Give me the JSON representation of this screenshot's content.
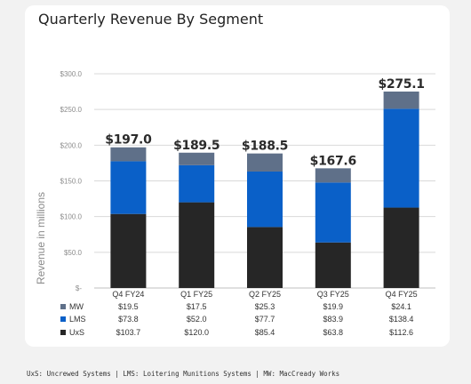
{
  "title": "Quarterly Revenue By Segment",
  "footnote": "UxS: Uncrewed Systems | LMS: Loitering Munitions Systems | MW: MacCready Works",
  "chart_data": {
    "type": "bar",
    "stacked": true,
    "title": "Quarterly Revenue By Segment",
    "ylabel": "Revenue in millions",
    "xlabel": "",
    "ylim": [
      0,
      300
    ],
    "yticks": [
      "$-",
      "$50.0",
      "$100.0",
      "$150.0",
      "$200.0",
      "$250.0",
      "$300.0"
    ],
    "yticks_values": [
      0,
      50,
      100,
      150,
      200,
      250,
      300
    ],
    "grid": true,
    "categories": [
      "Q4 FY24",
      "Q1 FY25",
      "Q2 FY25",
      "Q3 FY25",
      "Q4 FY25"
    ],
    "series": [
      {
        "name": "UxS",
        "values": [
          103.7,
          120.0,
          85.4,
          63.8,
          112.6
        ],
        "color": "#262626",
        "labels": [
          "$103.7",
          "$120.0",
          "$85.4",
          "$63.8",
          "$112.6"
        ]
      },
      {
        "name": "LMS",
        "values": [
          73.8,
          52.0,
          77.7,
          83.9,
          138.4
        ],
        "color": "#0a60c8",
        "labels": [
          "$73.8",
          "$52.0",
          "$77.7",
          "$83.9",
          "$138.4"
        ]
      },
      {
        "name": "MW",
        "values": [
          19.5,
          17.5,
          25.3,
          19.9,
          24.1
        ],
        "color": "#5f7089",
        "labels": [
          "$19.5",
          "$17.5",
          "$25.3",
          "$19.9",
          "$24.1"
        ]
      }
    ],
    "totals": [
      197.0,
      189.5,
      188.5,
      167.6,
      275.1
    ],
    "total_labels": [
      "$197.0",
      "$189.5",
      "$188.5",
      "$167.6",
      "$275.1"
    ],
    "data_table": true
  }
}
